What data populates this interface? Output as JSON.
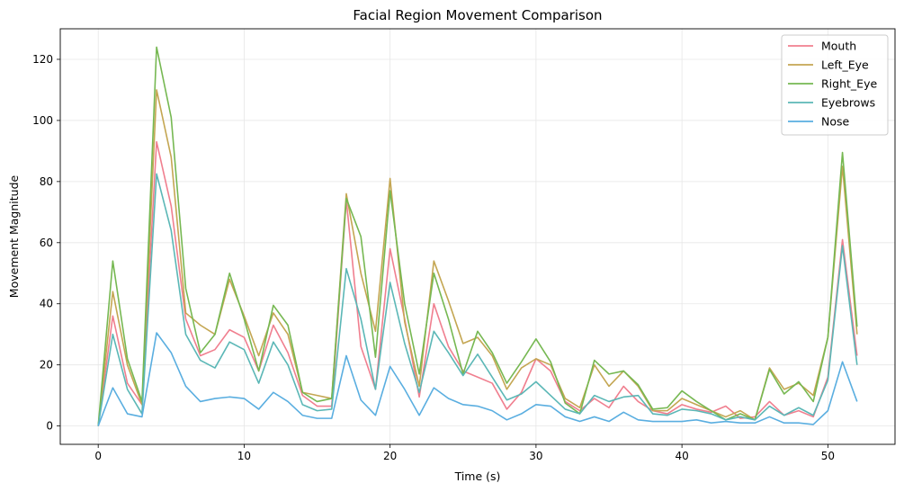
{
  "chart_data": {
    "type": "line",
    "title": "Facial Region Movement Comparison",
    "xlabel": "Time (s)",
    "ylabel": "Movement Magnitude",
    "xlim": [
      -2.6,
      54.6
    ],
    "ylim": [
      -6,
      130
    ],
    "xticks": [
      0,
      10,
      20,
      30,
      40,
      50
    ],
    "yticks": [
      0,
      20,
      40,
      60,
      80,
      100,
      120
    ],
    "grid": true,
    "legend_position": "top-right",
    "x": [
      0,
      1,
      2,
      3,
      4,
      5,
      6,
      7,
      8,
      9,
      10,
      11,
      12,
      13,
      14,
      15,
      16,
      17,
      18,
      19,
      20,
      21,
      22,
      23,
      24,
      25,
      26,
      27,
      28,
      29,
      30,
      31,
      32,
      33,
      34,
      35,
      36,
      37,
      38,
      39,
      40,
      41,
      42,
      43,
      44,
      45,
      46,
      47,
      48,
      49,
      50,
      51,
      52
    ],
    "series": [
      {
        "name": "Mouth",
        "color": "#f07f8f",
        "values": [
          0,
          36,
          14,
          7,
          93,
          72,
          35,
          23,
          25,
          31.5,
          29,
          18,
          33,
          24,
          10,
          6.5,
          6.5,
          74,
          26,
          12,
          58,
          35,
          9.5,
          40,
          26,
          18,
          16,
          14,
          5.5,
          11,
          22,
          18,
          8,
          5,
          9,
          6,
          13,
          8,
          5,
          4,
          7,
          5.5,
          4.5,
          6.5,
          2.5,
          3,
          8,
          3.5,
          5,
          3,
          16,
          61,
          23
        ]
      },
      {
        "name": "Left_Eye",
        "color": "#c4a652",
        "values": [
          0,
          44,
          20,
          7,
          110,
          88,
          37,
          33,
          30,
          48,
          36,
          23,
          37,
          30,
          11,
          10,
          9,
          76,
          50,
          31,
          81,
          34,
          13,
          54,
          41,
          27,
          29,
          23,
          12,
          19,
          22,
          20,
          9,
          6,
          20,
          13,
          18,
          13,
          5,
          5,
          9,
          7,
          5,
          3,
          5,
          2,
          19,
          12,
          14,
          10,
          29,
          85,
          30
        ]
      },
      {
        "name": "Right_Eye",
        "color": "#76b852",
        "values": [
          0,
          54,
          22,
          8,
          124,
          101,
          45,
          24,
          30,
          50,
          35,
          18,
          39.5,
          33,
          11,
          8,
          9,
          74.5,
          62,
          22.5,
          77,
          40,
          17,
          50,
          35,
          17,
          31,
          24,
          14,
          21,
          28.5,
          21,
          7.5,
          4,
          21.5,
          17,
          18,
          13.5,
          5.5,
          6,
          11.5,
          8,
          5,
          2,
          4,
          2,
          18.5,
          10.5,
          14.5,
          8,
          29,
          89.5,
          32.5
        ]
      },
      {
        "name": "Eyebrows",
        "color": "#5bb7b6",
        "values": [
          0,
          30,
          12,
          4,
          82.5,
          64,
          30,
          21.5,
          19,
          27.5,
          25,
          14,
          27.5,
          20,
          7,
          5,
          5.5,
          51.5,
          35,
          12,
          47,
          27,
          11,
          31,
          24,
          16.5,
          23.5,
          16,
          8.5,
          10.5,
          14.5,
          10,
          5.5,
          4,
          10,
          8,
          9.5,
          10,
          4,
          3.5,
          5.5,
          5,
          4,
          2,
          3,
          2,
          6.5,
          3.5,
          6,
          3.5,
          15,
          59,
          20
        ]
      },
      {
        "name": "Nose",
        "color": "#5aaee0",
        "values": [
          0,
          12.5,
          4,
          3,
          30.5,
          24,
          13,
          8,
          9,
          9.5,
          9,
          5.5,
          11,
          8,
          3.5,
          2.5,
          2.5,
          23,
          8.5,
          3.5,
          19.5,
          12,
          3.5,
          12.5,
          9,
          7,
          6.5,
          5,
          2,
          4,
          7,
          6.5,
          3,
          1.5,
          3,
          1.5,
          4.5,
          2,
          1.5,
          1.5,
          1.5,
          2,
          1,
          1.5,
          1,
          1,
          3,
          1,
          1,
          0.5,
          5,
          21,
          8
        ]
      }
    ]
  }
}
